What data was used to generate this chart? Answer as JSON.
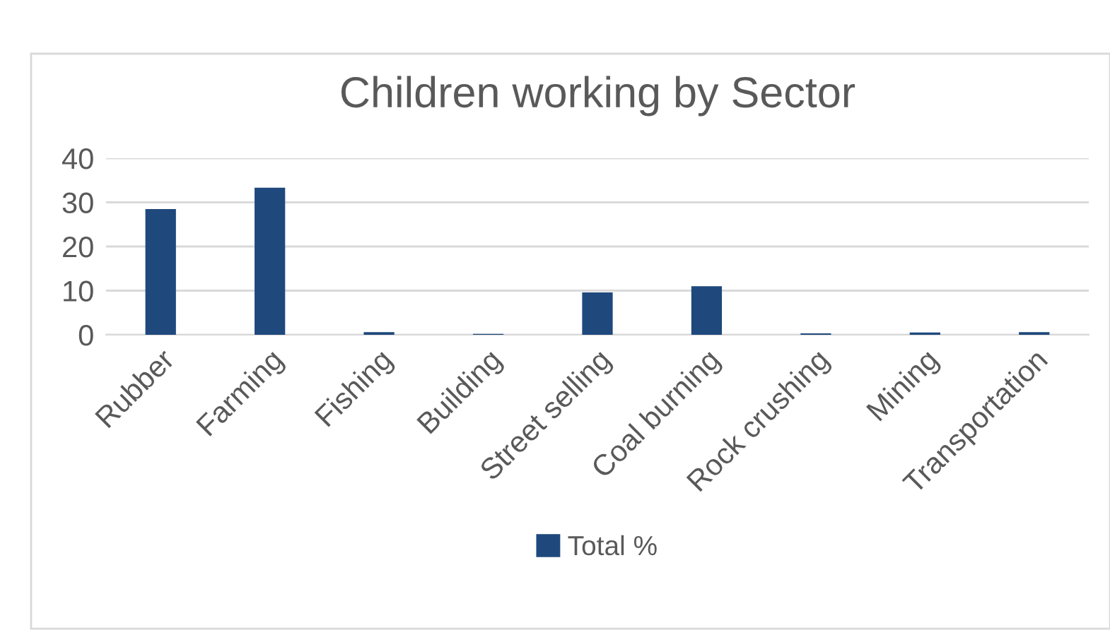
{
  "chart_data": {
    "type": "bar",
    "title": "Children working by Sector",
    "categories": [
      "Rubber",
      "Farming",
      "Fishing",
      "Building",
      "Street selling",
      "Coal burning",
      "Rock crushing",
      "Mining",
      "Transportation"
    ],
    "series": [
      {
        "name": "Total %",
        "color": "#1f497d",
        "values": [
          28.5,
          33.3,
          0.6,
          0.2,
          9.6,
          11.0,
          0.3,
          0.5,
          0.6
        ]
      }
    ],
    "ylim": [
      0,
      40
    ],
    "yticks": [
      0,
      10,
      20,
      30,
      40
    ],
    "grid": "y",
    "legend": "bottom"
  }
}
